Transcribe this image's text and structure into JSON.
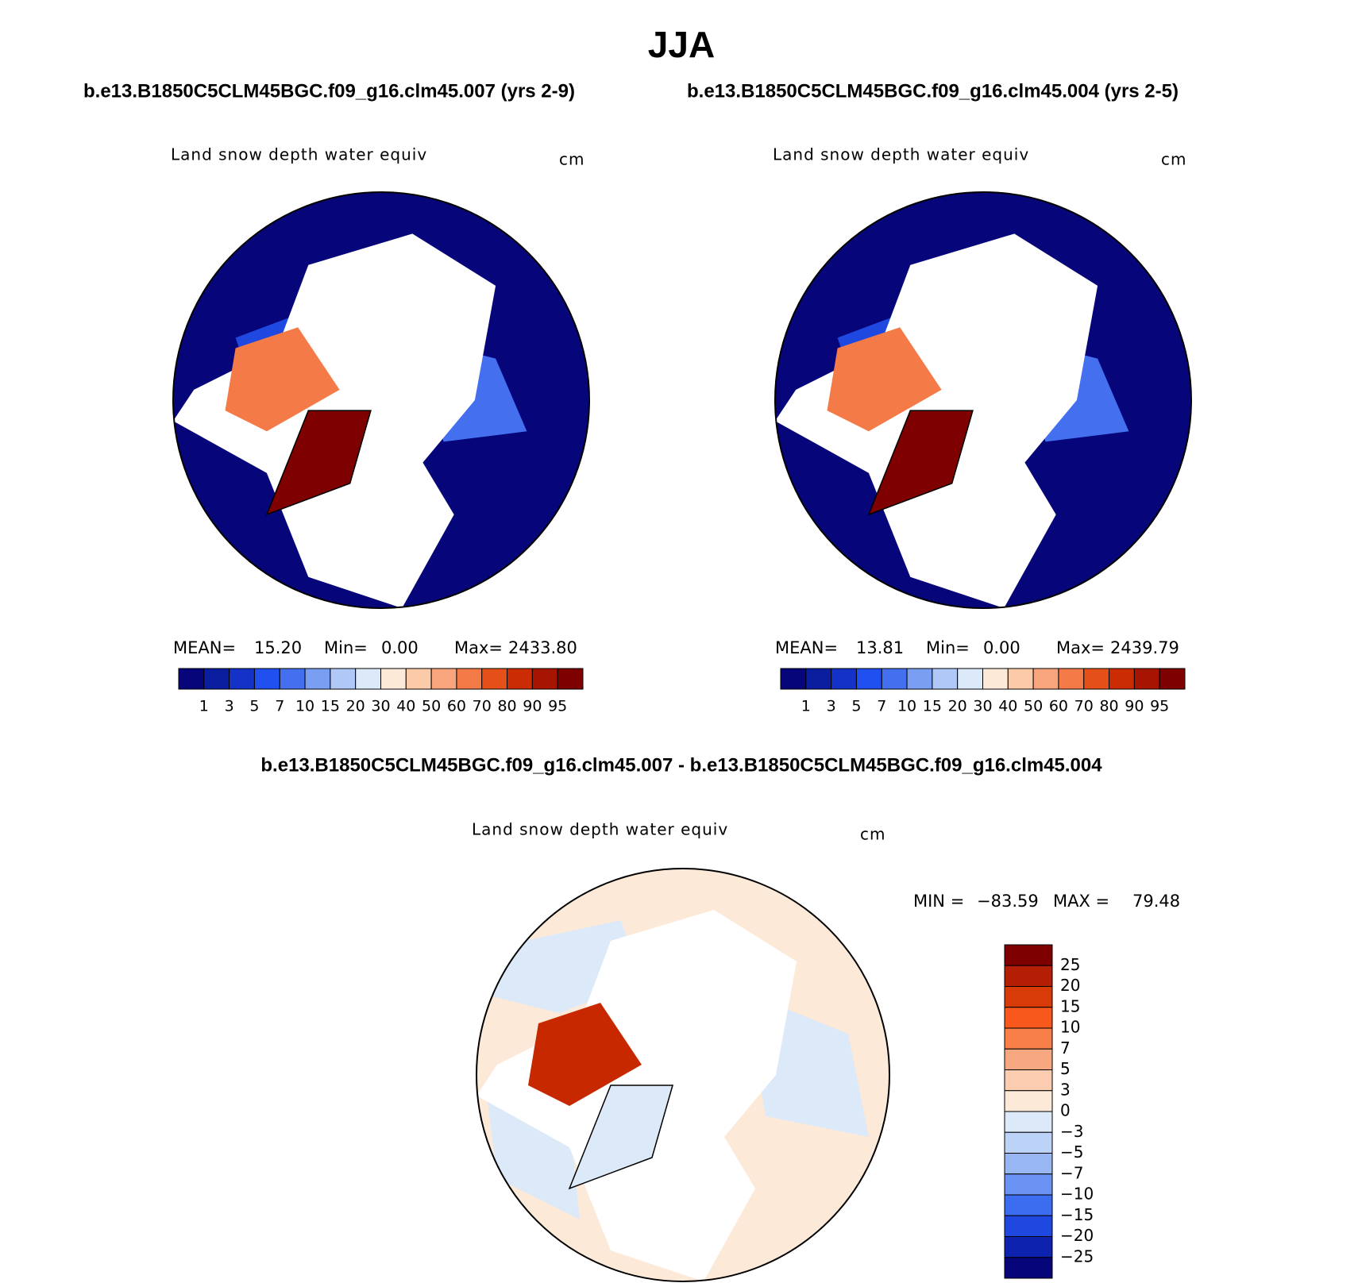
{
  "title": "JJA",
  "panels": [
    {
      "case_label": "b.e13.B1850C5CLM45BGC.f09_g16.clm45.007 (yrs 2-9)",
      "variable": "Land snow depth water equiv",
      "units": "cm",
      "stats": {
        "mean_label": "MEAN=",
        "mean": "15.20",
        "min_label": "Min=",
        "min": "0.00",
        "max_label": "Max=",
        "max": "2433.80"
      },
      "colorbar": {
        "labels": [
          "1",
          "3",
          "5",
          "7",
          "10",
          "15",
          "20",
          "30",
          "40",
          "50",
          "60",
          "70",
          "80",
          "90",
          "95"
        ],
        "colors": [
          "#06067a",
          "#0c1ea0",
          "#1432c8",
          "#2050f0",
          "#4470f0",
          "#7a9ef2",
          "#afc8f6",
          "#dce9f8",
          "#fde9d8",
          "#fbcaa8",
          "#f8a47c",
          "#f47a48",
          "#e45018",
          "#cc2c04",
          "#a81402",
          "#7e0000"
        ]
      }
    },
    {
      "case_label": "b.e13.B1850C5CLM45BGC.f09_g16.clm45.004 (yrs 2-5)",
      "variable": "Land snow depth water equiv",
      "units": "cm",
      "stats": {
        "mean_label": "MEAN=",
        "mean": "13.81",
        "min_label": "Min=",
        "min": "0.00",
        "max_label": "Max=",
        "max": "2439.79"
      },
      "colorbar": {
        "labels": [
          "1",
          "3",
          "5",
          "7",
          "10",
          "15",
          "20",
          "30",
          "40",
          "50",
          "60",
          "70",
          "80",
          "90",
          "95"
        ],
        "colors": [
          "#06067a",
          "#0c1ea0",
          "#1432c8",
          "#2050f0",
          "#4470f0",
          "#7a9ef2",
          "#afc8f6",
          "#dce9f8",
          "#fde9d8",
          "#fbcaa8",
          "#f8a47c",
          "#f47a48",
          "#e45018",
          "#cc2c04",
          "#a81402",
          "#7e0000"
        ]
      }
    }
  ],
  "difference": {
    "case_label": "b.e13.B1850C5CLM45BGC.f09_g16.clm45.007 - b.e13.B1850C5CLM45BGC.f09_g16.clm45.004",
    "variable": "Land snow depth water equiv",
    "units": "cm",
    "stats": {
      "min_label": "MIN =",
      "min": "−83.59",
      "max_label": "MAX =",
      "max": "79.48"
    },
    "colorbar": {
      "labels": [
        "25",
        "20",
        "15",
        "10",
        "7",
        "5",
        "3",
        "0",
        "−3",
        "−5",
        "−7",
        "−10",
        "−15",
        "−20",
        "−25"
      ],
      "colors": [
        "#7e0000",
        "#b41e04",
        "#d83a08",
        "#f8581c",
        "#f88048",
        "#f8a880",
        "#fbccb0",
        "#fde9d8",
        "#dce9f8",
        "#bcd2f6",
        "#98b6f4",
        "#6a92f2",
        "#3c6cf0",
        "#1e48e0",
        "#0e22b0",
        "#06067a"
      ]
    }
  }
}
